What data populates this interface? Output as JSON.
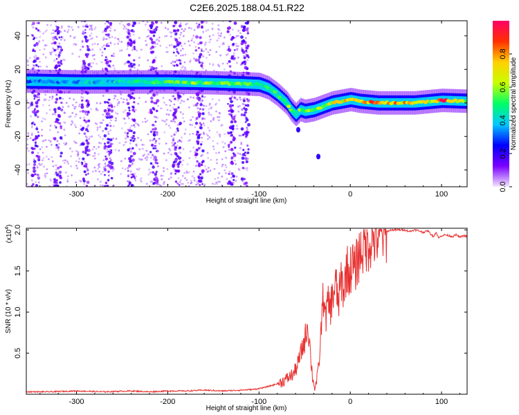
{
  "title": "C2E6.2025.188.04.51.R22",
  "chart_data": [
    {
      "type": "heatmap",
      "xlabel": "Height of straight line (km)",
      "ylabel": "Frequency (Hz)",
      "xlim": [
        -355,
        128
      ],
      "ylim": [
        -50,
        49
      ],
      "x_ticks": [
        -300,
        -200,
        -100,
        0,
        100
      ],
      "x_tick_labels": [
        "-300",
        "-200",
        "-100",
        "0",
        "100"
      ],
      "y_ticks": [
        -40,
        -20,
        0,
        20,
        40
      ],
      "y_tick_labels": [
        "-40",
        "-20",
        "0",
        "20",
        "40"
      ],
      "grid": false,
      "colorbar": {
        "label": "Normalized spectral amplitude",
        "range": [
          0,
          1
        ],
        "ticks": [
          0.0,
          0.2,
          0.4,
          0.6,
          0.8
        ],
        "tick_labels": [
          "0.0",
          "0.2",
          "0.4",
          "0.6",
          "0.8"
        ],
        "colors": [
          "#f3e6ff",
          "#7a00ff",
          "#0000ff",
          "#00c8ff",
          "#00ff66",
          "#c8ff00",
          "#ffd000",
          "#ff3000",
          "#ff0066"
        ]
      },
      "ridge": {
        "name": "dominant frequency",
        "x": [
          -355,
          -300,
          -250,
          -200,
          -150,
          -120,
          -100,
          -90,
          -80,
          -70,
          -65,
          -60,
          -55,
          -50,
          -40,
          -30,
          -20,
          -10,
          0,
          10,
          30,
          50,
          70,
          90,
          100,
          128
        ],
        "y": [
          13,
          12.5,
          12.5,
          12.5,
          12,
          11.5,
          11,
          9,
          5,
          0,
          -4,
          -7,
          -4,
          -5,
          -4,
          -2,
          0,
          1,
          2,
          1,
          0,
          0,
          0,
          1,
          1.5,
          1
        ],
        "intensity": [
          0.35,
          0.4,
          0.45,
          0.55,
          0.6,
          0.55,
          0.5,
          0.55,
          0.5,
          0.55,
          0.6,
          0.45,
          0.6,
          0.55,
          0.6,
          0.55,
          0.7,
          0.75,
          0.8,
          0.85,
          0.85,
          0.8,
          0.75,
          0.7,
          0.95,
          0.6
        ]
      },
      "noise_region_x": [
        -355,
        -112
      ],
      "noise_bands_x": [
        -345,
        -320,
        -290,
        -265,
        -240,
        -215,
        -190,
        -165,
        -130,
        -115
      ],
      "tail_points": [
        {
          "x": -57,
          "y": -16
        },
        {
          "x": -35,
          "y": -32
        }
      ]
    },
    {
      "type": "line",
      "xlabel": "Height of straight line (km)",
      "ylabel": "SNR (10 * v/v)",
      "y_scale_label": "(x10",
      "y_scale_exponent": "4",
      "y_scale_suffix": ")",
      "xlim": [
        -355,
        128
      ],
      "ylim": [
        0,
        2.02
      ],
      "x_ticks": [
        -300,
        -200,
        -100,
        0,
        100
      ],
      "x_tick_labels": [
        "-300",
        "-200",
        "-100",
        "0",
        "100"
      ],
      "y_ticks": [
        0.5,
        1.0,
        1.5,
        2.0
      ],
      "y_tick_labels": [
        "0.5",
        "1.0",
        "1.5",
        "2.0"
      ],
      "grid": false,
      "series": [
        {
          "color": "#e83030",
          "x": [
            -355,
            -330,
            -300,
            -270,
            -240,
            -220,
            -200,
            -180,
            -160,
            -140,
            -120,
            -105,
            -95,
            -85,
            -75,
            -68,
            -62,
            -58,
            -54,
            -50,
            -47,
            -45,
            -43,
            -41,
            -39,
            -37,
            -35,
            -33,
            -31,
            -29,
            -27,
            -25,
            -22,
            -19,
            -16,
            -13,
            -10,
            -7,
            -4,
            -1,
            2,
            5,
            8,
            12,
            16,
            20,
            25,
            30,
            35,
            40,
            45,
            50,
            55,
            60,
            65,
            70,
            75,
            80,
            85,
            88,
            91,
            94,
            97,
            100,
            104,
            108,
            112,
            116,
            120,
            124,
            128
          ],
          "values": [
            0.03,
            0.03,
            0.04,
            0.03,
            0.04,
            0.03,
            0.04,
            0.04,
            0.05,
            0.04,
            0.05,
            0.06,
            0.08,
            0.11,
            0.15,
            0.2,
            0.25,
            0.35,
            0.5,
            0.65,
            0.85,
            0.7,
            0.4,
            0.18,
            0.08,
            0.15,
            0.3,
            0.55,
            1.0,
            1.25,
            0.9,
            1.1,
            1.05,
            1.2,
            1.35,
            1.1,
            1.4,
            1.25,
            1.55,
            1.45,
            1.6,
            1.5,
            1.65,
            1.75,
            1.82,
            1.85,
            1.9,
            1.92,
            1.95,
            1.98,
            2.0,
            2.0,
            2.0,
            2.0,
            1.98,
            2.0,
            1.99,
            1.97,
            1.99,
            1.95,
            1.92,
            1.97,
            1.9,
            1.93,
            1.94,
            1.93,
            1.92,
            1.94,
            1.91,
            1.93,
            1.92
          ]
        }
      ]
    }
  ]
}
